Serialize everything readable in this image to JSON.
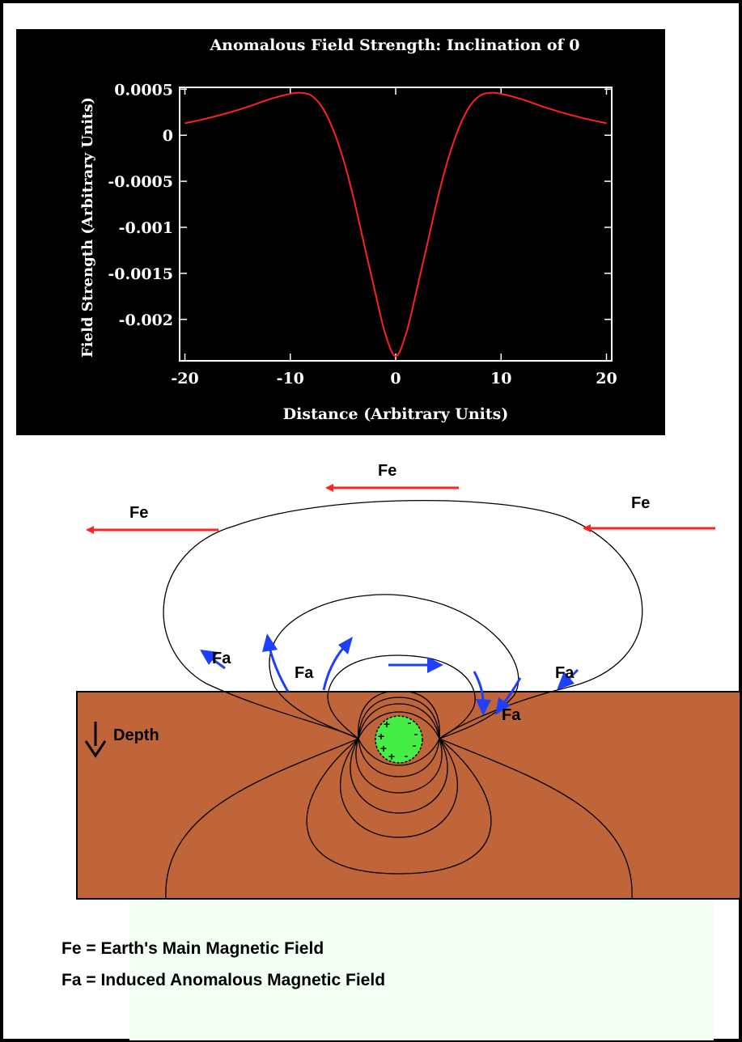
{
  "chart_data": {
    "type": "line",
    "title": "Anomalous Field Strength: Inclination of 0",
    "xlabel": "Distance (Arbitrary Units)",
    "ylabel": "Field Strength (Arbitrary Units)",
    "xlim": [
      -20.5,
      20.5
    ],
    "ylim": [
      -0.00245,
      0.00052
    ],
    "xticks": [
      {
        "value": -20,
        "label": "-20"
      },
      {
        "value": -10,
        "label": "-10"
      },
      {
        "value": 0,
        "label": "0"
      },
      {
        "value": 10,
        "label": "10"
      },
      {
        "value": 20,
        "label": "20"
      }
    ],
    "yticks": [
      {
        "value": 0.0005,
        "label": "0.0005"
      },
      {
        "value": 0,
        "label": "0"
      },
      {
        "value": -0.0005,
        "label": "-0.0005"
      },
      {
        "value": -0.001,
        "label": "-0.001"
      },
      {
        "value": -0.0015,
        "label": "-0.0015"
      },
      {
        "value": -0.002,
        "label": "-0.002"
      }
    ],
    "grid": false,
    "colors": {
      "background": "#000000",
      "axes": "#ffffff",
      "line": "#ff2020"
    },
    "series": [
      {
        "x": [
          -20,
          -18,
          -16,
          -14,
          -12,
          -10,
          -9,
          -8,
          -7,
          -6,
          -5,
          -4,
          -3,
          -2,
          -1,
          0,
          1,
          2,
          3,
          4,
          5,
          6,
          7,
          8,
          9,
          10,
          12,
          14,
          16,
          18,
          20
        ],
        "values": [
          0.00013,
          0.00018,
          0.00024,
          0.00031,
          0.00039,
          0.00045,
          0.00046,
          0.00043,
          0.00031,
          8e-05,
          -0.00025,
          -0.00068,
          -0.00118,
          -0.00168,
          -0.00215,
          -0.0024,
          -0.00215,
          -0.00168,
          -0.00118,
          -0.00068,
          -0.00025,
          8e-05,
          0.00031,
          0.00043,
          0.00046,
          0.00045,
          0.00039,
          0.00031,
          0.00024,
          0.00018,
          0.00013
        ]
      }
    ]
  },
  "diagram": {
    "field_labels": {
      "fe": [
        "Fe",
        "Fe",
        "Fe"
      ],
      "fa": [
        "Fa",
        "Fa",
        "Fa",
        "Fa"
      ]
    },
    "depth_label": "Depth",
    "sphere_charges": [
      "+",
      "+",
      "+",
      "+",
      "-",
      "-",
      "-",
      "-"
    ],
    "colors": {
      "earth": "#c0643a",
      "sphere": "#44ee44",
      "fe_arrow": "#ff2222",
      "fa_arrow": "#1f3fff",
      "field_line": "#000000",
      "legend_bg": "#f2fff2"
    }
  },
  "legend": {
    "items": [
      "Fe = Earth's Main Magnetic Field",
      "Fa = Induced Anomalous Magnetic Field"
    ]
  }
}
